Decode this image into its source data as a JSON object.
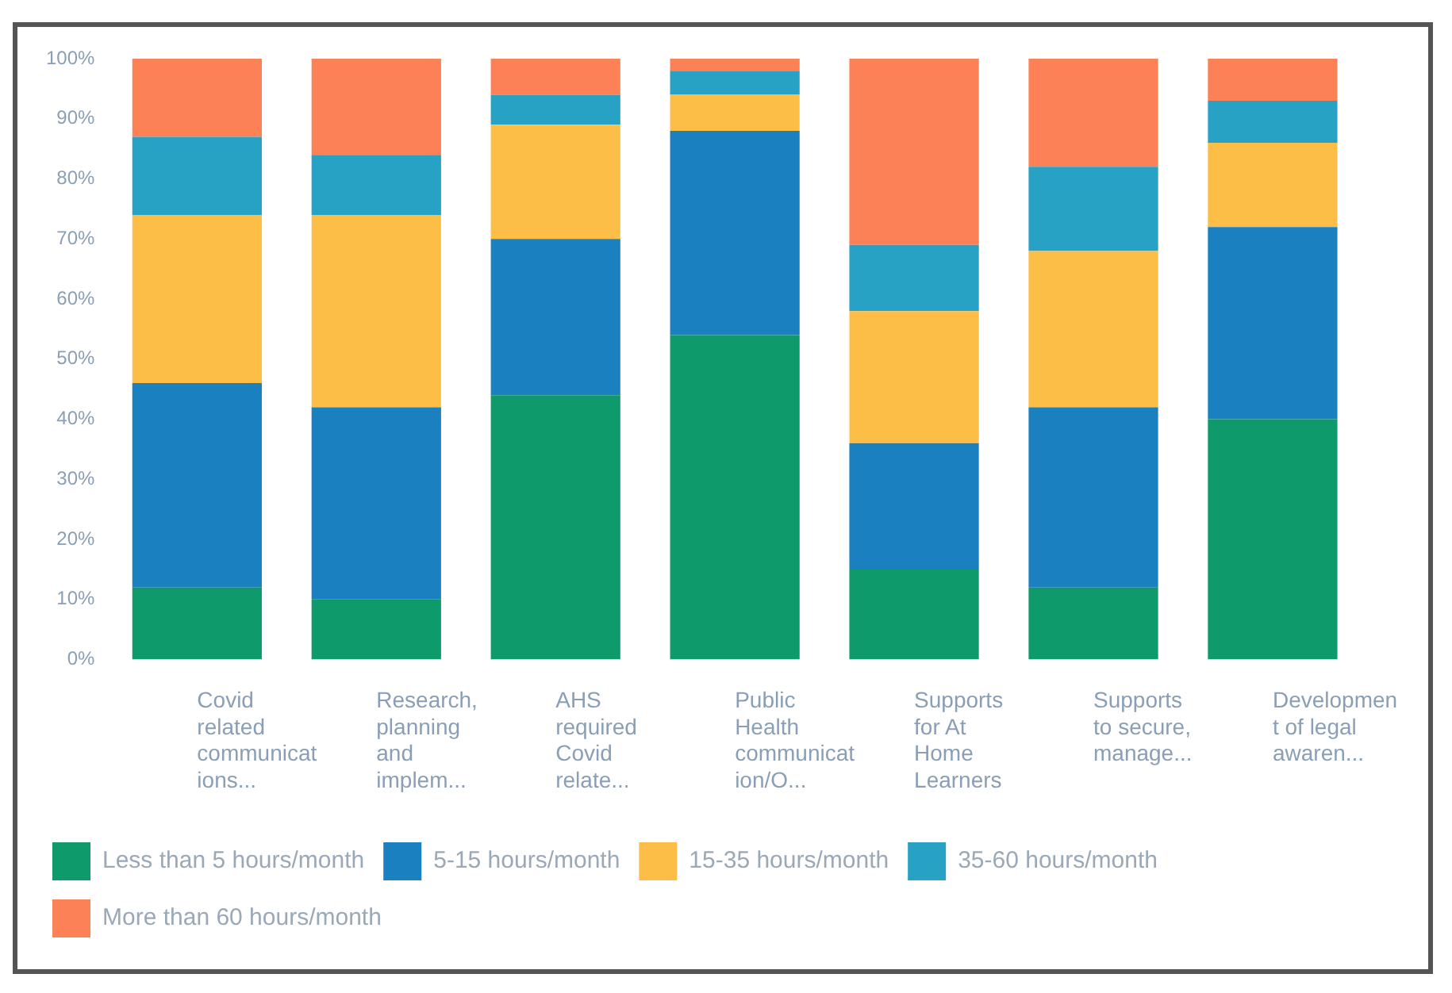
{
  "chart_data": {
    "type": "bar",
    "stacked": true,
    "categories": [
      "Covid related communications...",
      "Research, planning and implem...",
      "AHS required Covid relate...",
      "Public Health communication/O...",
      "Supports for At Home Learners",
      "Supports to secure, manage...",
      "Development of legal awaren..."
    ],
    "series": [
      {
        "name": "Less than 5 hours/month",
        "color": "#0e9a6a",
        "values": [
          12,
          10,
          44,
          54,
          15,
          12,
          40
        ]
      },
      {
        "name": "5-15 hours/month",
        "color": "#1a80bf",
        "values": [
          34,
          32,
          26,
          34,
          21,
          30,
          32
        ]
      },
      {
        "name": "15-35 hours/month",
        "color": "#fdbe48",
        "values": [
          28,
          32,
          19,
          6,
          22,
          26,
          14
        ]
      },
      {
        "name": "35-60 hours/month",
        "color": "#27a2c5",
        "values": [
          13,
          10,
          5,
          4,
          11,
          14,
          7
        ]
      },
      {
        "name": "More than 60 hours/month",
        "color": "#fc8156",
        "values": [
          13,
          16,
          6,
          2,
          31,
          18,
          7
        ]
      }
    ],
    "ylim": [
      0,
      100
    ],
    "yticks": [
      {
        "value": 0,
        "label": "0%"
      },
      {
        "value": 10,
        "label": "10%"
      },
      {
        "value": 20,
        "label": "20%"
      },
      {
        "value": 30,
        "label": "30%"
      },
      {
        "value": 40,
        "label": "40%"
      },
      {
        "value": 50,
        "label": "50%"
      },
      {
        "value": 60,
        "label": "60%"
      },
      {
        "value": 70,
        "label": "70%"
      },
      {
        "value": 80,
        "label": "80%"
      },
      {
        "value": 90,
        "label": "90%"
      },
      {
        "value": 100,
        "label": "100%"
      }
    ],
    "grid": false,
    "legend": "bottom left"
  }
}
